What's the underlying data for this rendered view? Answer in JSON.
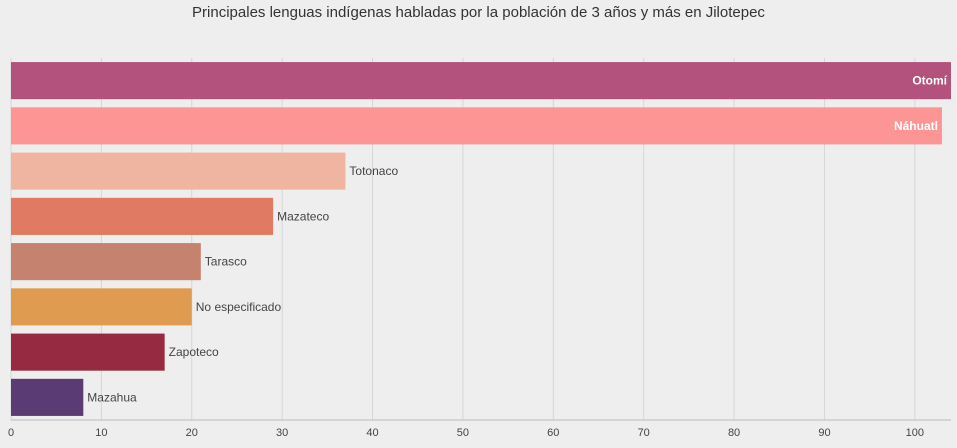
{
  "chart_data": {
    "type": "bar",
    "orientation": "horizontal",
    "title": "Principales lenguas indígenas habladas por la población de 3 años y más en Jilotepec",
    "categories": [
      "Otomí",
      "Náhuatl",
      "Totonaco",
      "Mazateco",
      "Tarasco",
      "No especificado",
      "Zapoteco",
      "Mazahua"
    ],
    "values": [
      104,
      103,
      37,
      29,
      21,
      20,
      17,
      8
    ],
    "colors": [
      "#b3527c",
      "#fe9595",
      "#efb5a0",
      "#e07a63",
      "#c5826e",
      "#df9c51",
      "#952a40",
      "#5b3b74"
    ],
    "xlim": [
      0,
      104
    ],
    "xticks": [
      0,
      10,
      20,
      30,
      40,
      50,
      60,
      70,
      80,
      90,
      100
    ],
    "grid": true,
    "legend": "none"
  }
}
